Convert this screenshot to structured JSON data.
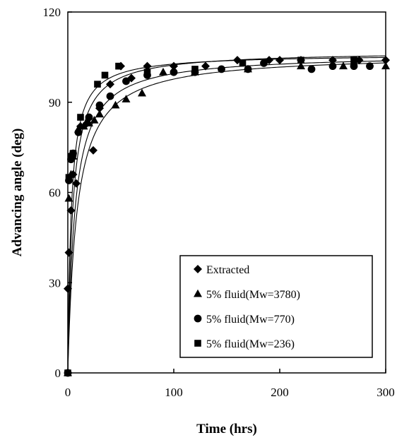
{
  "chart_data": {
    "type": "scatter",
    "title": "",
    "xlabel": "Time (hrs)",
    "ylabel": "Advancing angle (deg)",
    "xlim": [
      0,
      300
    ],
    "ylim": [
      0,
      120
    ],
    "xticks": [
      0,
      100,
      200,
      300
    ],
    "yticks": [
      0,
      30,
      60,
      90,
      120
    ],
    "grid": false,
    "legend": "bottom-right",
    "series": [
      {
        "name": "Extracted",
        "marker": "diamond",
        "color": "#000000",
        "x": [
          0,
          1,
          3,
          5,
          8,
          12,
          18,
          24,
          30,
          40,
          50,
          60,
          75,
          100,
          130,
          160,
          190,
          200,
          220,
          250,
          275,
          300
        ],
        "y": [
          28,
          40,
          54,
          66,
          63,
          82,
          83,
          74,
          88,
          96,
          102,
          98,
          102,
          102,
          102,
          104,
          104,
          104,
          104,
          104,
          104,
          104
        ]
      },
      {
        "name": "5% fluid(Mw=3780)",
        "marker": "triangle",
        "color": "#000000",
        "x": [
          0,
          1,
          3,
          5,
          10,
          15,
          20,
          25,
          30,
          45,
          55,
          70,
          90,
          120,
          170,
          220,
          260,
          300
        ],
        "y": [
          0,
          58,
          66,
          72,
          81,
          82,
          83,
          84,
          86,
          89,
          91,
          93,
          100,
          100,
          101,
          102,
          102,
          102
        ]
      },
      {
        "name": "5% fluid(Mw=770)",
        "marker": "circle",
        "color": "#000000",
        "x": [
          0,
          1,
          3,
          5,
          10,
          20,
          30,
          40,
          55,
          75,
          100,
          120,
          145,
          170,
          185,
          230,
          250,
          270,
          285
        ],
        "y": [
          0,
          64,
          71,
          73,
          80,
          85,
          89,
          92,
          97,
          99,
          100,
          100,
          101,
          101,
          103,
          101,
          102,
          102,
          102
        ]
      },
      {
        "name": "5% fluid(Mw=236)",
        "marker": "square",
        "color": "#000000",
        "x": [
          0,
          1,
          3,
          5,
          12,
          28,
          35,
          48,
          75,
          120,
          165,
          220,
          270
        ],
        "y": [
          0,
          65,
          72,
          73,
          85,
          96,
          99,
          102,
          100,
          101,
          103,
          104,
          104
        ]
      }
    ]
  }
}
